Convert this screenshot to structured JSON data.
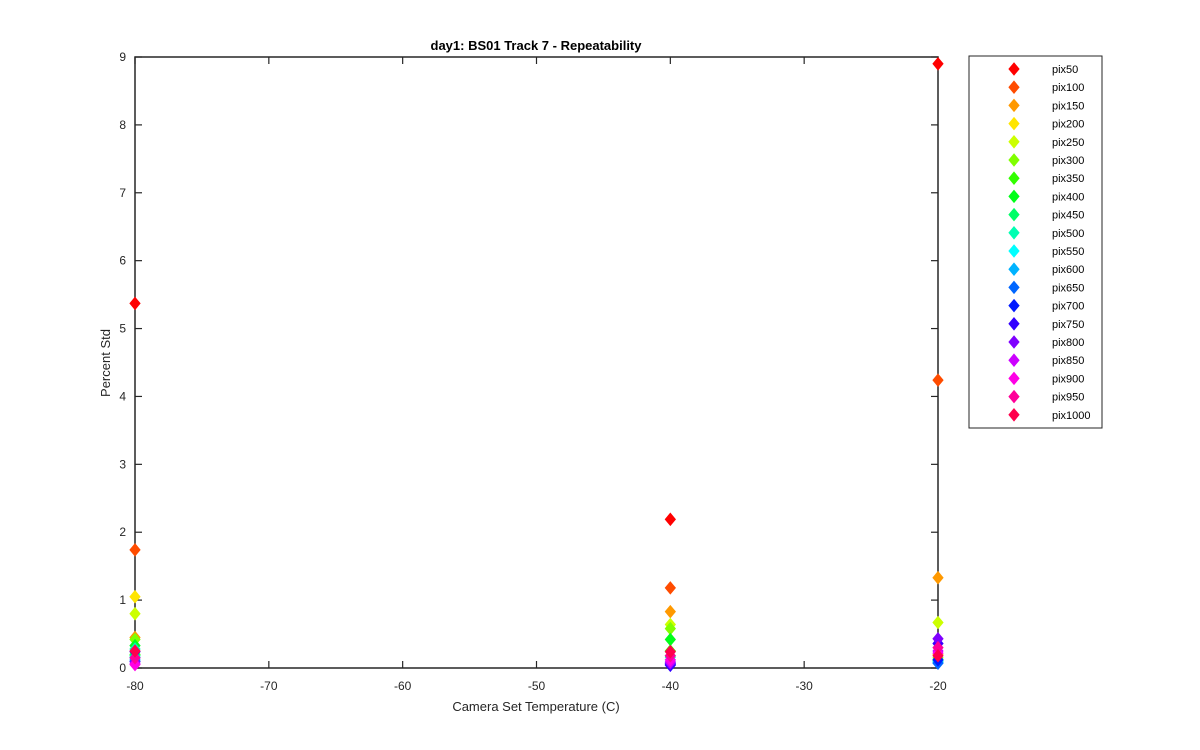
{
  "chart_data": {
    "type": "scatter",
    "title": "day1: BS01  Track 7  - Repeatability",
    "xlabel": "Camera Set Temperature (C)",
    "ylabel": "Percent Std",
    "xlim": [
      -80,
      -20
    ],
    "ylim": [
      0,
      9
    ],
    "xticks": [
      -80,
      -70,
      -60,
      -50,
      -40,
      -30,
      -20
    ],
    "yticks": [
      0,
      1,
      2,
      3,
      4,
      5,
      6,
      7,
      8,
      9
    ],
    "x": [
      -80,
      -40,
      -20
    ],
    "marker": "diamond",
    "grid": false,
    "legend_position": "outside-right",
    "series": [
      {
        "name": "pix50",
        "color": "#ff0000",
        "values": [
          5.37,
          2.19,
          8.9
        ]
      },
      {
        "name": "pix100",
        "color": "#ff4c00",
        "values": [
          1.74,
          1.18,
          4.24
        ]
      },
      {
        "name": "pix150",
        "color": "#ff9900",
        "values": [
          0.45,
          0.83,
          1.33
        ]
      },
      {
        "name": "pix200",
        "color": "#ffe500",
        "values": [
          1.05,
          0.25,
          0.2
        ]
      },
      {
        "name": "pix250",
        "color": "#ccff00",
        "values": [
          0.8,
          0.64,
          0.67
        ]
      },
      {
        "name": "pix300",
        "color": "#80ff00",
        "values": [
          0.42,
          0.58,
          0.15
        ]
      },
      {
        "name": "pix350",
        "color": "#33ff00",
        "values": [
          0.2,
          0.25,
          0.12
        ]
      },
      {
        "name": "pix400",
        "color": "#00ff19",
        "values": [
          0.33,
          0.42,
          0.1
        ]
      },
      {
        "name": "pix450",
        "color": "#00ff66",
        "values": [
          0.18,
          0.18,
          0.11
        ]
      },
      {
        "name": "pix500",
        "color": "#00ffb2",
        "values": [
          0.28,
          0.16,
          0.12
        ]
      },
      {
        "name": "pix550",
        "color": "#00ffff",
        "values": [
          0.16,
          0.12,
          0.1
        ]
      },
      {
        "name": "pix600",
        "color": "#00b3ff",
        "values": [
          0.12,
          0.08,
          0.08
        ]
      },
      {
        "name": "pix650",
        "color": "#0066ff",
        "values": [
          0.1,
          0.06,
          0.07
        ]
      },
      {
        "name": "pix700",
        "color": "#001aff",
        "values": [
          0.24,
          0.05,
          0.12
        ]
      },
      {
        "name": "pix750",
        "color": "#3300ff",
        "values": [
          0.15,
          0.04,
          0.36
        ]
      },
      {
        "name": "pix800",
        "color": "#7f00ff",
        "values": [
          0.09,
          0.07,
          0.43
        ]
      },
      {
        "name": "pix850",
        "color": "#cc00ff",
        "values": [
          0.06,
          0.09,
          0.25
        ]
      },
      {
        "name": "pix900",
        "color": "#ff00e6",
        "values": [
          0.05,
          0.12,
          0.22
        ]
      },
      {
        "name": "pix950",
        "color": "#ff0099",
        "values": [
          0.15,
          0.18,
          0.3
        ]
      },
      {
        "name": "pix1000",
        "color": "#ff004c",
        "values": [
          0.25,
          0.24,
          0.18
        ]
      }
    ]
  }
}
